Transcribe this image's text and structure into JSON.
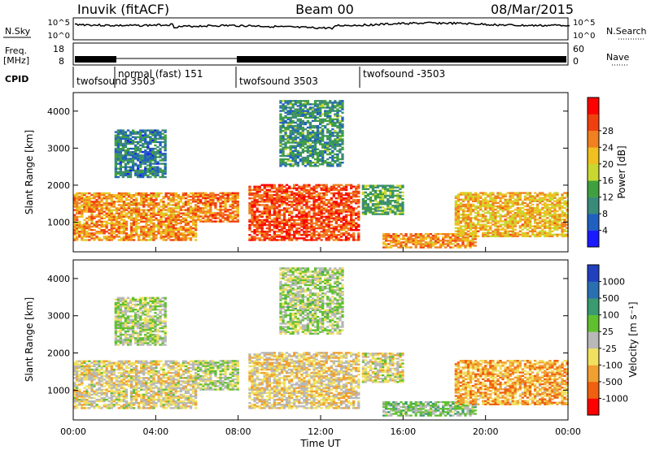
{
  "header": {
    "station": "Inuvik (fitACF)",
    "beam": "Beam 00",
    "date": "08/Mar/2015"
  },
  "strip_panels": {
    "nsky": {
      "label": "N.Sky",
      "left_ticks": [
        "10^5",
        "10^0"
      ],
      "right_label": "N.Search",
      "right_ticks": [
        "10^5",
        "10^0"
      ]
    },
    "freq": {
      "label_line1": "Freq.",
      "label_line2": "[MHz]",
      "left_ticks": [
        "18",
        "8"
      ],
      "right_label": "Nave",
      "right_ticks": [
        "60",
        "0"
      ]
    },
    "cpid": {
      "label": "CPID",
      "entries": [
        {
          "text": "twofsound 3503",
          "start_hour": 0.0
        },
        {
          "text": "normal (fast) 151",
          "start_hour": 2.0
        },
        {
          "text": "twofsound 3503",
          "start_hour": 8.0
        },
        {
          "text": "twofsound -3503",
          "start_hour": 14.0
        }
      ]
    }
  },
  "colors": {
    "power_scale": [
      "#1a1aff",
      "#2060c0",
      "#3a8a7a",
      "#40a040",
      "#c8d830",
      "#f0c020",
      "#f08020",
      "#f04010",
      "#ff0000"
    ],
    "velocity_scale": [
      "#2040c0",
      "#2a70b0",
      "#3a9a70",
      "#60c030",
      "#b8b8b8",
      "#f0e060",
      "#f0a030",
      "#f06010",
      "#ff0000"
    ]
  },
  "chart_data": [
    {
      "type": "heatmap",
      "name": "power",
      "ylabel": "Slant Range [km]",
      "yticks": [
        "1000",
        "2000",
        "3000",
        "4000"
      ],
      "ylim": [
        200,
        4500
      ],
      "xlim_hours": [
        0,
        24
      ],
      "colorbar": {
        "label": "Power [dB]",
        "tick_labels": [
          "4",
          "8",
          "12",
          "16",
          "20",
          "24",
          "28"
        ],
        "range": [
          0,
          32
        ]
      },
      "echo_bands": [
        {
          "t0": 0.0,
          "t1": 6.0,
          "r0": 500,
          "r1": 1800,
          "value": 22
        },
        {
          "t0": 6.0,
          "t1": 8.0,
          "r0": 1000,
          "r1": 1800,
          "value": 24
        },
        {
          "t0": 8.5,
          "t1": 13.8,
          "r0": 500,
          "r1": 2000,
          "value": 26
        },
        {
          "t0": 14.0,
          "t1": 16.0,
          "r0": 1200,
          "r1": 2000,
          "value": 12
        },
        {
          "t0": 15.0,
          "t1": 19.5,
          "r0": 300,
          "r1": 700,
          "value": 22
        },
        {
          "t0": 18.5,
          "t1": 24.0,
          "r0": 600,
          "r1": 1800,
          "value": 20
        },
        {
          "t0": 10.0,
          "t1": 13.0,
          "r0": 2500,
          "r1": 4300,
          "value": 10
        },
        {
          "t0": 2.0,
          "t1": 4.5,
          "r0": 2200,
          "r1": 3500,
          "value": 8
        }
      ]
    },
    {
      "type": "heatmap",
      "name": "velocity",
      "ylabel": "Slant Range [km]",
      "yticks": [
        "1000",
        "2000",
        "3000",
        "4000"
      ],
      "ylim": [
        200,
        4500
      ],
      "xlim_hours": [
        0,
        24
      ],
      "xlabel": "Time UT",
      "xticks": [
        "00:00",
        "04:00",
        "08:00",
        "12:00",
        "16:00",
        "20:00",
        "00:00"
      ],
      "colorbar": {
        "label": "Velocity [m s⁻¹]",
        "tick_labels": [
          "1000",
          "500",
          "100",
          "25",
          "-25",
          "-100",
          "-500",
          "-1000"
        ],
        "range": [
          -1000,
          1000
        ]
      },
      "echo_bands": [
        {
          "t0": 0.0,
          "t1": 6.0,
          "r0": 500,
          "r1": 1800,
          "value": -150
        },
        {
          "t0": 6.0,
          "t1": 8.0,
          "r0": 1000,
          "r1": 1800,
          "value": 20
        },
        {
          "t0": 8.5,
          "t1": 13.8,
          "r0": 500,
          "r1": 2000,
          "value": -200
        },
        {
          "t0": 14.0,
          "t1": 16.0,
          "r0": 1200,
          "r1": 2000,
          "value": -100
        },
        {
          "t0": 15.0,
          "t1": 19.5,
          "r0": 300,
          "r1": 700,
          "value": 150
        },
        {
          "t0": 18.5,
          "t1": 24.0,
          "r0": 600,
          "r1": 1800,
          "value": -400
        },
        {
          "t0": 10.0,
          "t1": 13.0,
          "r0": 2500,
          "r1": 4300,
          "value": 50
        },
        {
          "t0": 2.0,
          "t1": 4.5,
          "r0": 2200,
          "r1": 3500,
          "value": 30
        }
      ]
    }
  ]
}
